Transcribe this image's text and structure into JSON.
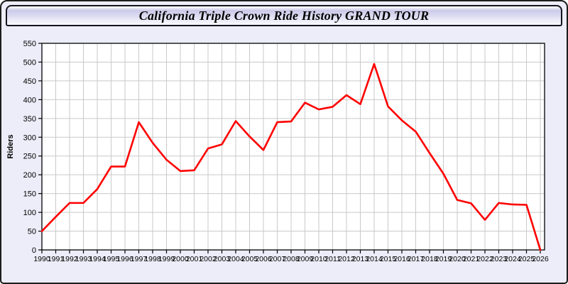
{
  "window": {
    "title": "California Triple Crown Ride History GRAND TOUR"
  },
  "colors": {
    "line": "#ff0000",
    "window_background": "#ededf9",
    "plot_background": "#ffffff",
    "gridline": "#c9c9c9",
    "axis": "#000000",
    "titlebar_border": "#14141c"
  },
  "chart_data": {
    "type": "line",
    "title": "California Triple Crown Ride History GRAND TOUR",
    "xlabel": "",
    "ylabel": "Riders",
    "ylim": [
      0,
      550
    ],
    "ytick_step": 50,
    "grid": true,
    "legend_position": "none",
    "line_color": "#ff0000",
    "x": [
      1990,
      1991,
      1992,
      1993,
      1994,
      1995,
      1996,
      1997,
      1998,
      1999,
      2000,
      2001,
      2002,
      2003,
      2004,
      2005,
      2006,
      2007,
      2008,
      2009,
      2010,
      2011,
      2012,
      2013,
      2014,
      2015,
      2016,
      2017,
      2018,
      2019,
      2020,
      2021,
      2022,
      2023,
      2024,
      2025,
      2026
    ],
    "series": [
      {
        "name": "Riders",
        "values": [
          50,
          88,
          125,
          125,
          162,
          222,
          222,
          340,
          285,
          240,
          210,
          212,
          270,
          281,
          343,
          302,
          266,
          340,
          342,
          392,
          374,
          381,
          412,
          388,
          495,
          382,
          345,
          315,
          258,
          203,
          133,
          124,
          80,
          125,
          121,
          120,
          0
        ]
      }
    ]
  }
}
